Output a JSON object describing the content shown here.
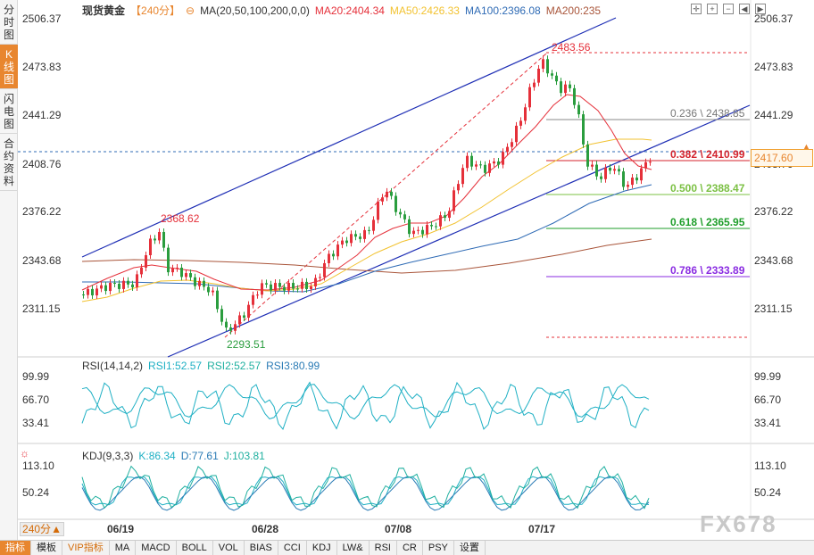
{
  "side_tabs": [
    {
      "label": "分时图",
      "active": false
    },
    {
      "label": "K线图",
      "active": true
    },
    {
      "label": "闪电图",
      "active": false
    },
    {
      "label": "合约资料",
      "active": false
    }
  ],
  "header": {
    "symbol": "现货黄金",
    "period": "【240分】",
    "ma_label": "MA(20,50,100,200,0,0)",
    "ma20": "MA20:2404.34",
    "ma50": "MA50:2426.33",
    "ma100": "MA100:2396.08",
    "ma200": "MA200:235"
  },
  "colors": {
    "up": "#e5303a",
    "down": "#2a9d3e",
    "ma20": "#e5303a",
    "ma50": "#f2c230",
    "ma100": "#2f6bb5",
    "ma200": "#a9553a",
    "channel": "#1f2fb5",
    "accent": "#e8862f"
  },
  "price_axis": [
    "2506.37",
    "2473.83",
    "2441.29",
    "2408.76",
    "2376.22",
    "2343.68",
    "2311.15"
  ],
  "last_price": "2417.60",
  "annotations": {
    "high": "2483.56",
    "mid": "2368.62",
    "low": "2293.51"
  },
  "fibo": [
    {
      "label": "0.236 \\ 2438.85",
      "color": "#777777"
    },
    {
      "label": "0.382 \\ 2410.99",
      "color": "#d4232d"
    },
    {
      "label": "0.500 \\ 2388.47",
      "color": "#7bc043"
    },
    {
      "label": "0.618 \\ 2365.95",
      "color": "#1e9e2a"
    },
    {
      "label": "0.786 \\ 2333.89",
      "color": "#8a2be2"
    }
  ],
  "rsi": {
    "title": "RSI(14,14,2)",
    "rsi1": "RSI1:52.57",
    "rsi2": "RSI2:52.57",
    "rsi3": "RSI3:80.99",
    "axis": [
      "99.99",
      "66.70",
      "33.41"
    ]
  },
  "kdj": {
    "title": "KDJ(9,3,3)",
    "k": "K:86.34",
    "d": "D:77.61",
    "j": "J:103.81",
    "axis": [
      "113.10",
      "50.24"
    ]
  },
  "dates": [
    "06/19",
    "06/28",
    "07/08",
    "07/17"
  ],
  "period_button": "240分",
  "bottom_buttons": [
    "指标",
    "模板",
    "VIP指标",
    "MA",
    "MACD",
    "BOLL",
    "VOL",
    "BIAS",
    "CCI",
    "KDJ",
    "LW&",
    "RSI",
    "CR",
    "PSY",
    "设置"
  ],
  "watermark": "FX678"
}
